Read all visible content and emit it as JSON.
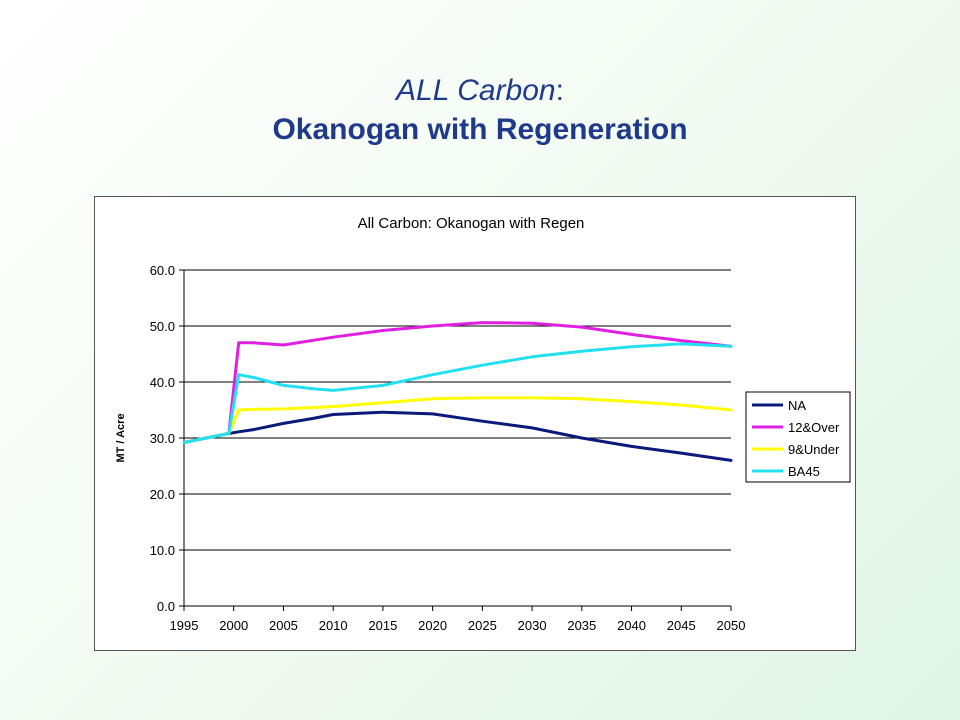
{
  "slide": {
    "title_italic": "ALL Carbon",
    "title_colon": ":",
    "subtitle": "Okanogan with Regeneration"
  },
  "chart_data": {
    "type": "line",
    "title": "All Carbon:  Okanogan with Regen",
    "xlabel": "",
    "ylabel": "MT / Acre",
    "ylim": [
      0,
      60
    ],
    "xlim": [
      1995,
      2050
    ],
    "yticks": [
      "0.0",
      "10.0",
      "20.0",
      "30.0",
      "40.0",
      "50.0",
      "60.0"
    ],
    "xticks": [
      "1995",
      "2000",
      "2005",
      "2010",
      "2015",
      "2020",
      "2025",
      "2030",
      "2035",
      "2040",
      "2045",
      "2050"
    ],
    "grid": "horizontal",
    "legend_position": "right",
    "series": [
      {
        "name": "NA",
        "color": "#0a1a7a",
        "x": [
          1995,
          1999.5,
          2000.5,
          2002,
          2005,
          2008,
          2010,
          2015,
          2020,
          2025,
          2030,
          2035,
          2040,
          2045,
          2050
        ],
        "y": [
          29.2,
          30.8,
          31.1,
          31.5,
          32.6,
          33.5,
          34.2,
          34.6,
          34.3,
          33.0,
          31.8,
          30.0,
          28.5,
          27.3,
          26.0
        ]
      },
      {
        "name": "12&Over",
        "color": "#e020e0",
        "x": [
          1995,
          1999.5,
          2000.5,
          2002,
          2005,
          2010,
          2015,
          2020,
          2025,
          2030,
          2035,
          2040,
          2045,
          2050
        ],
        "y": [
          29.2,
          30.8,
          47.0,
          47.0,
          46.6,
          48.0,
          49.2,
          50.0,
          50.6,
          50.5,
          49.8,
          48.5,
          47.4,
          46.4
        ]
      },
      {
        "name": "9&Under",
        "color": "#ffff00",
        "x": [
          1995,
          1999.5,
          2000.5,
          2002,
          2005,
          2010,
          2015,
          2020,
          2025,
          2030,
          2035,
          2040,
          2045,
          2050
        ],
        "y": [
          29.2,
          30.8,
          35.0,
          35.1,
          35.2,
          35.6,
          36.3,
          37.0,
          37.2,
          37.2,
          37.0,
          36.5,
          35.9,
          35.0
        ]
      },
      {
        "name": "BA45",
        "color": "#22e0f0",
        "x": [
          1995,
          1999.5,
          2000.5,
          2002,
          2005,
          2008,
          2010,
          2015,
          2020,
          2025,
          2030,
          2035,
          2040,
          2045,
          2050
        ],
        "y": [
          29.2,
          30.8,
          41.3,
          40.8,
          39.4,
          38.8,
          38.5,
          39.4,
          41.3,
          43.0,
          44.5,
          45.5,
          46.3,
          46.8,
          46.4
        ]
      }
    ]
  }
}
